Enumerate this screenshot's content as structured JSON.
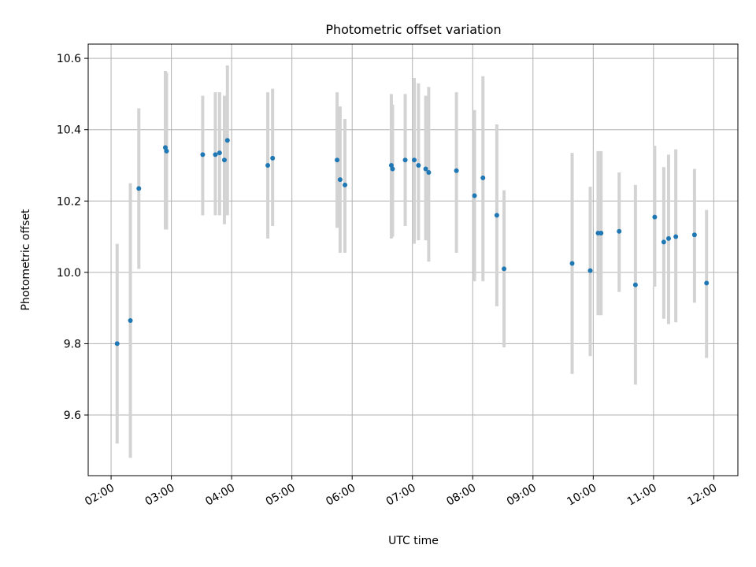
{
  "chart_data": {
    "type": "scatter",
    "title": "Photometric offset variation",
    "xlabel": "UTC time",
    "ylabel": "Photometric offset",
    "x_unit": "hours",
    "xlim": [
      1.62,
      12.4
    ],
    "ylim": [
      9.43,
      10.64
    ],
    "x_ticks": [
      {
        "value": 2,
        "label": "02:00"
      },
      {
        "value": 3,
        "label": "03:00"
      },
      {
        "value": 4,
        "label": "04:00"
      },
      {
        "value": 5,
        "label": "05:00"
      },
      {
        "value": 6,
        "label": "06:00"
      },
      {
        "value": 7,
        "label": "07:00"
      },
      {
        "value": 8,
        "label": "08:00"
      },
      {
        "value": 9,
        "label": "09:00"
      },
      {
        "value": 10,
        "label": "10:00"
      },
      {
        "value": 11,
        "label": "11:00"
      },
      {
        "value": 12,
        "label": "12:00"
      }
    ],
    "y_ticks": [
      {
        "value": 9.6,
        "label": "9.6"
      },
      {
        "value": 9.8,
        "label": "9.8"
      },
      {
        "value": 10.0,
        "label": "10.0"
      },
      {
        "value": 10.2,
        "label": "10.2"
      },
      {
        "value": 10.4,
        "label": "10.4"
      },
      {
        "value": 10.6,
        "label": "10.6"
      }
    ],
    "grid": true,
    "colors": {
      "point": "#1f77b4",
      "errorbar": "#d3d3d3",
      "grid": "#b0b0b0"
    },
    "points": [
      {
        "x": 2.1,
        "y": 9.8,
        "ylow": 9.52,
        "yhigh": 10.08
      },
      {
        "x": 2.32,
        "y": 9.865,
        "ylow": 9.48,
        "yhigh": 10.25
      },
      {
        "x": 2.46,
        "y": 10.235,
        "ylow": 10.01,
        "yhigh": 10.46
      },
      {
        "x": 2.9,
        "y": 10.35,
        "ylow": 10.12,
        "yhigh": 10.565
      },
      {
        "x": 2.92,
        "y": 10.34,
        "ylow": 10.12,
        "yhigh": 10.56
      },
      {
        "x": 3.52,
        "y": 10.33,
        "ylow": 10.16,
        "yhigh": 10.495
      },
      {
        "x": 3.73,
        "y": 10.33,
        "ylow": 10.16,
        "yhigh": 10.505
      },
      {
        "x": 3.8,
        "y": 10.335,
        "ylow": 10.16,
        "yhigh": 10.505
      },
      {
        "x": 3.88,
        "y": 10.315,
        "ylow": 10.135,
        "yhigh": 10.495
      },
      {
        "x": 3.93,
        "y": 10.37,
        "ylow": 10.16,
        "yhigh": 10.58
      },
      {
        "x": 4.6,
        "y": 10.3,
        "ylow": 10.095,
        "yhigh": 10.505
      },
      {
        "x": 4.68,
        "y": 10.32,
        "ylow": 10.13,
        "yhigh": 10.515
      },
      {
        "x": 5.75,
        "y": 10.315,
        "ylow": 10.125,
        "yhigh": 10.505
      },
      {
        "x": 5.8,
        "y": 10.26,
        "ylow": 10.055,
        "yhigh": 10.465
      },
      {
        "x": 5.88,
        "y": 10.245,
        "ylow": 10.055,
        "yhigh": 10.43
      },
      {
        "x": 6.65,
        "y": 10.3,
        "ylow": 10.095,
        "yhigh": 10.5
      },
      {
        "x": 6.67,
        "y": 10.29,
        "ylow": 10.1,
        "yhigh": 10.47
      },
      {
        "x": 6.88,
        "y": 10.315,
        "ylow": 10.13,
        "yhigh": 10.5
      },
      {
        "x": 7.03,
        "y": 10.315,
        "ylow": 10.08,
        "yhigh": 10.545
      },
      {
        "x": 7.1,
        "y": 10.3,
        "ylow": 10.09,
        "yhigh": 10.53
      },
      {
        "x": 7.22,
        "y": 10.29,
        "ylow": 10.09,
        "yhigh": 10.495
      },
      {
        "x": 7.27,
        "y": 10.28,
        "ylow": 10.03,
        "yhigh": 10.52
      },
      {
        "x": 7.73,
        "y": 10.285,
        "ylow": 10.055,
        "yhigh": 10.505
      },
      {
        "x": 8.03,
        "y": 10.215,
        "ylow": 9.975,
        "yhigh": 10.455
      },
      {
        "x": 8.17,
        "y": 10.265,
        "ylow": 9.975,
        "yhigh": 10.55
      },
      {
        "x": 8.4,
        "y": 10.16,
        "ylow": 9.905,
        "yhigh": 10.415
      },
      {
        "x": 8.52,
        "y": 10.01,
        "ylow": 9.79,
        "yhigh": 10.23
      },
      {
        "x": 9.65,
        "y": 10.025,
        "ylow": 9.715,
        "yhigh": 10.335
      },
      {
        "x": 9.95,
        "y": 10.005,
        "ylow": 9.765,
        "yhigh": 10.24
      },
      {
        "x": 10.08,
        "y": 10.11,
        "ylow": 9.88,
        "yhigh": 10.34
      },
      {
        "x": 10.13,
        "y": 10.11,
        "ylow": 9.88,
        "yhigh": 10.34
      },
      {
        "x": 10.43,
        "y": 10.115,
        "ylow": 9.945,
        "yhigh": 10.28
      },
      {
        "x": 10.7,
        "y": 9.965,
        "ylow": 9.685,
        "yhigh": 10.245
      },
      {
        "x": 11.02,
        "y": 10.155,
        "ylow": 9.96,
        "yhigh": 10.355
      },
      {
        "x": 11.17,
        "y": 10.085,
        "ylow": 9.87,
        "yhigh": 10.295
      },
      {
        "x": 11.25,
        "y": 10.095,
        "ylow": 9.855,
        "yhigh": 10.33
      },
      {
        "x": 11.37,
        "y": 10.1,
        "ylow": 9.86,
        "yhigh": 10.345
      },
      {
        "x": 11.68,
        "y": 10.105,
        "ylow": 9.915,
        "yhigh": 10.29
      },
      {
        "x": 11.88,
        "y": 9.97,
        "ylow": 9.76,
        "yhigh": 10.175
      }
    ]
  }
}
